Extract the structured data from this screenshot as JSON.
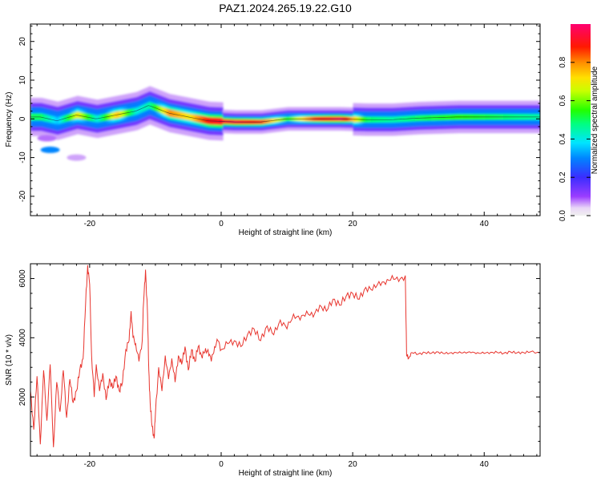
{
  "title": "PAZ1.2024.265.19.22.G10",
  "colors": {
    "snr_line": "#e8352e",
    "axis": "#000000",
    "background": "#ffffff"
  },
  "chart_data": [
    {
      "type": "heatmap",
      "xlabel": "Height of straight line (km)",
      "ylabel": "Frequency (Hz)",
      "xlim": [
        -29,
        48.5
      ],
      "ylim": [
        -25,
        24.5
      ],
      "x_ticks": [
        -20,
        0,
        20,
        40
      ],
      "y_ticks": [
        -20,
        -10,
        0,
        10,
        20
      ],
      "colorbar": {
        "label": "Normalized spectral amplitude",
        "range": [
          0,
          1
        ],
        "ticks": [
          0.0,
          0.2,
          0.4,
          0.6,
          0.8
        ],
        "colormap": "rainbow (violet-blue-cyan-green-yellow-red-magenta)"
      },
      "ridge": {
        "description": "dominant frequency ridge (Hz) vs height (km)",
        "x": [
          -27.5,
          -25,
          -22,
          -19,
          -16,
          -13,
          -11,
          -8,
          -5,
          -2,
          2,
          6,
          10,
          14,
          18,
          22,
          26,
          30,
          36,
          42,
          48.5
        ],
        "freq": [
          0.5,
          -0.5,
          1.0,
          0.0,
          1.0,
          2.0,
          3.5,
          1.5,
          0.5,
          -0.5,
          -0.8,
          -0.8,
          0.0,
          0.0,
          0.0,
          -0.2,
          -0.2,
          0.2,
          0.5,
          0.5,
          0.5
        ],
        "amplitude": [
          0.5,
          0.35,
          0.7,
          0.4,
          0.75,
          0.4,
          0.45,
          0.8,
          0.7,
          0.9,
          0.95,
          0.85,
          0.55,
          0.85,
          0.98,
          0.5,
          0.45,
          0.5,
          0.55,
          0.5,
          0.45
        ]
      }
    },
    {
      "type": "line",
      "xlabel": "Height of straight line (km)",
      "ylabel": "SNR (10 * v/v)",
      "xlim": [
        -29,
        48.5
      ],
      "ylim": [
        0,
        6500
      ],
      "x_ticks": [
        -20,
        0,
        20,
        40
      ],
      "y_ticks": [
        2000,
        4000,
        6000
      ],
      "series": [
        {
          "x": [
            -29,
            -28.5,
            -28,
            -27.5,
            -27,
            -26.5,
            -26,
            -25.5,
            -25,
            -24.5,
            -24,
            -23.5,
            -23,
            -22.5,
            -22,
            -21.5,
            -21,
            -20.6,
            -20.3,
            -20,
            -19.7,
            -19.3,
            -19,
            -18.5,
            -18,
            -17.5,
            -17,
            -16.5,
            -16,
            -15.5,
            -15,
            -14.5,
            -14,
            -13.7,
            -13.4,
            -13,
            -12.5,
            -12,
            -11.8,
            -11.5,
            -11.2,
            -11,
            -10.8,
            -10.5,
            -10.2,
            -10,
            -9.5,
            -9,
            -8.5,
            -8,
            -7.5,
            -7,
            -6.5,
            -6,
            -5.5,
            -5,
            -4.5,
            -4,
            -3.5,
            -3,
            -2.5,
            -2,
            -1.5,
            -1,
            -0.5,
            0,
            1,
            2,
            3,
            4,
            5,
            6,
            7,
            8,
            9,
            10,
            11,
            12,
            13,
            14,
            15,
            16,
            17,
            18,
            19,
            20,
            21,
            22,
            23,
            24,
            25,
            26,
            27,
            28,
            28.2,
            28.5,
            29,
            30,
            31,
            32,
            33,
            34,
            35,
            36,
            37,
            38,
            39,
            40,
            41,
            42,
            43,
            44,
            45,
            46,
            47,
            48.5
          ],
          "y": [
            2200,
            900,
            2700,
            400,
            2900,
            1200,
            3100,
            300,
            2500,
            1500,
            2900,
            1300,
            2600,
            1800,
            2200,
            2900,
            3300,
            5200,
            6450,
            5800,
            3400,
            2000,
            3100,
            2200,
            2800,
            1900,
            2600,
            2300,
            2700,
            2200,
            2500,
            3600,
            3900,
            4900,
            4000,
            3800,
            3200,
            3900,
            5200,
            6300,
            4800,
            2900,
            1800,
            1000,
            600,
            1400,
            3000,
            2200,
            3400,
            2600,
            3300,
            2500,
            3400,
            3100,
            3700,
            2900,
            3600,
            3200,
            3700,
            3400,
            3500,
            3600,
            3200,
            3700,
            3900,
            3600,
            3800,
            3900,
            3700,
            4100,
            4300,
            3900,
            4400,
            4100,
            4600,
            4300,
            4800,
            4600,
            4900,
            4700,
            5100,
            4900,
            5300,
            5100,
            5400,
            5500,
            5300,
            5700,
            5600,
            5900,
            5800,
            6100,
            5900,
            6100,
            3400,
            3300,
            3500,
            3450,
            3500,
            3480,
            3520,
            3460,
            3500,
            3480,
            3520,
            3490,
            3500,
            3470,
            3510,
            3500,
            3480,
            3520,
            3490,
            3500,
            3520,
            3500
          ]
        }
      ]
    }
  ]
}
